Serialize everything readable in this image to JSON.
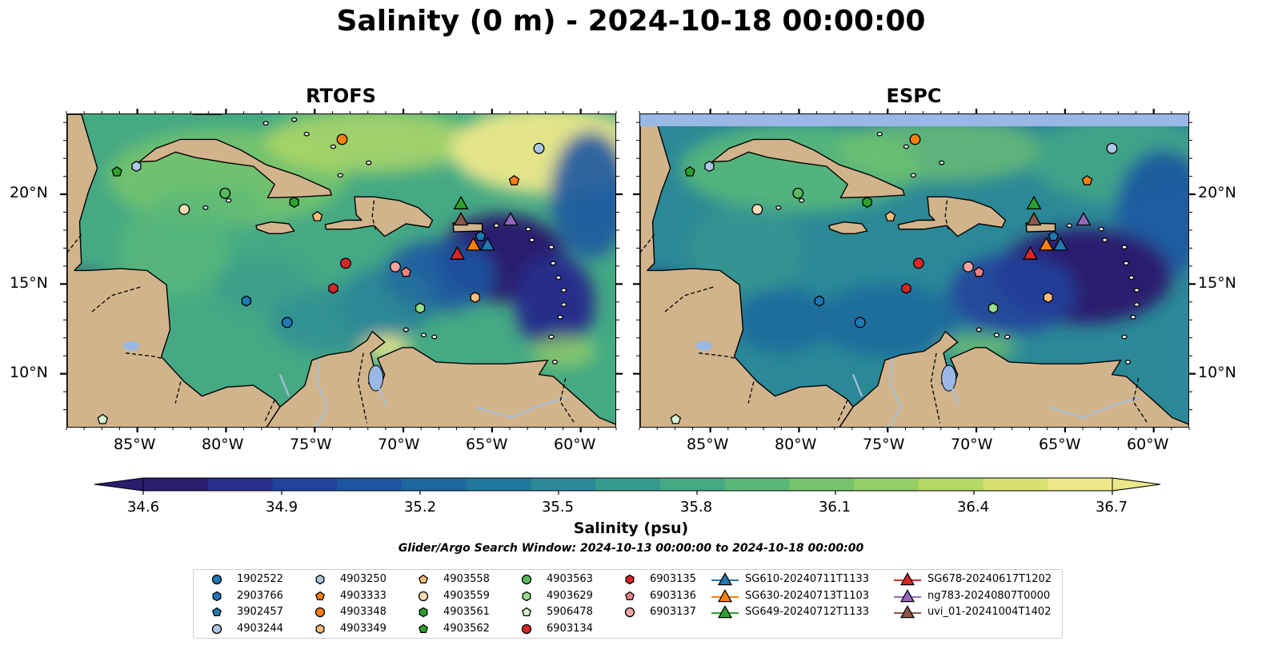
{
  "title": "Salinity (0 m) - 2024-10-18 00:00:00",
  "panels": [
    {
      "title": "RTOFS",
      "variant": "rtofs"
    },
    {
      "title": "ESPC",
      "variant": "espc"
    }
  ],
  "axes": {
    "lon_labels": [
      "85°W",
      "80°W",
      "75°W",
      "70°W",
      "65°W",
      "60°W"
    ],
    "lon_values": [
      -85,
      -80,
      -75,
      -70,
      -65,
      -60
    ],
    "lat_labels": [
      "20°N",
      "15°N",
      "10°N"
    ],
    "lat_values": [
      20,
      15,
      10
    ],
    "lon_range": [
      -89,
      -58
    ],
    "lat_range": [
      7,
      24.5
    ]
  },
  "colorbar": {
    "title": "Salinity (psu)",
    "tick_labels": [
      "34.6",
      "34.9",
      "35.2",
      "35.5",
      "35.8",
      "36.1",
      "36.4",
      "36.7"
    ],
    "range": [
      34.6,
      36.7
    ],
    "extend": "both",
    "colors": [
      "#2a1d6e",
      "#282f8a",
      "#22439c",
      "#1c56a1",
      "#1d679f",
      "#22789c",
      "#2b8997",
      "#36998e",
      "#45a984",
      "#58b879",
      "#75c46d",
      "#93cf66",
      "#b4d965",
      "#d6e16f",
      "#ece88a"
    ]
  },
  "search_window": "Glider/Argo Search Window: 2024-10-13 00:00:00 to 2024-10-18 00:00:00",
  "colors": {
    "land": "#d2b48c",
    "water_bodies": "#9ab8e6",
    "rivers": "#a8bfd8",
    "espc_no_data": "#9ab8e6"
  },
  "legend": [
    {
      "label": "1902522",
      "marker": "circle",
      "color": "#1f77b4"
    },
    {
      "label": "2903766",
      "marker": "hexagon",
      "color": "#1f77b4"
    },
    {
      "label": "3902457",
      "marker": "pentagon",
      "color": "#1f77b4"
    },
    {
      "label": "4903244",
      "marker": "circle",
      "color": "#aec7e8"
    },
    {
      "label": "4903250",
      "marker": "hexagon",
      "color": "#aec7e8"
    },
    {
      "label": "4903333",
      "marker": "pentagon",
      "color": "#ff7f0e"
    },
    {
      "label": "4903348",
      "marker": "circle",
      "color": "#ff7f0e"
    },
    {
      "label": "4903349",
      "marker": "hexagon",
      "color": "#ffbb78"
    },
    {
      "label": "4903558",
      "marker": "pentagon",
      "color": "#ffbb78"
    },
    {
      "label": "4903559",
      "marker": "circle",
      "color": "#ffdab9"
    },
    {
      "label": "4903561",
      "marker": "hexagon",
      "color": "#2ca02c"
    },
    {
      "label": "4903562",
      "marker": "pentagon",
      "color": "#2ca02c"
    },
    {
      "label": "4903563",
      "marker": "circle",
      "color": "#5cb85c"
    },
    {
      "label": "4903629",
      "marker": "hexagon",
      "color": "#98df8a"
    },
    {
      "label": "5906478",
      "marker": "pentagon",
      "color": "#d8f5d0"
    },
    {
      "label": "6903134",
      "marker": "circle",
      "color": "#d62728"
    },
    {
      "label": "6903135",
      "marker": "hexagon",
      "color": "#d62728"
    },
    {
      "label": "6903136",
      "marker": "pentagon",
      "color": "#f08080"
    },
    {
      "label": "6903137",
      "marker": "circle",
      "color": "#f4a3a3"
    },
    {
      "label": "SG610-20240711T1133",
      "marker": "triangle",
      "color": "#1f77b4"
    },
    {
      "label": "SG630-20240713T1103",
      "marker": "triangle",
      "color": "#ff7f0e"
    },
    {
      "label": "SG649-20240712T1133",
      "marker": "triangle",
      "color": "#2ca02c"
    },
    {
      "label": "SG678-20240617T1202",
      "marker": "triangle",
      "color": "#d62728"
    },
    {
      "label": "ng783-20240807T0000",
      "marker": "triangle",
      "color": "#9467bd"
    },
    {
      "label": "uvi_01-20241004T1402",
      "marker": "triangle",
      "color": "#8c564b"
    }
  ],
  "observations": [
    {
      "id": "1902522",
      "lon": -76.6,
      "lat": 12.9
    },
    {
      "id": "2903766",
      "lon": -78.9,
      "lat": 14.1
    },
    {
      "id": "3902457",
      "lon": -65.7,
      "lat": 17.7
    },
    {
      "id": "4903244",
      "lon": -62.4,
      "lat": 22.6
    },
    {
      "id": "4903250",
      "lon": -85.1,
      "lat": 21.6
    },
    {
      "id": "4903333",
      "lon": -63.8,
      "lat": 20.8
    },
    {
      "id": "4903348",
      "lon": -73.5,
      "lat": 23.1
    },
    {
      "id": "4903349",
      "lon": -66.0,
      "lat": 14.3
    },
    {
      "id": "4903558",
      "lon": -74.9,
      "lat": 18.8
    },
    {
      "id": "4903559",
      "lon": -82.4,
      "lat": 19.2
    },
    {
      "id": "4903561",
      "lon": -76.2,
      "lat": 19.6
    },
    {
      "id": "4903562",
      "lon": -86.2,
      "lat": 21.3
    },
    {
      "id": "4903563",
      "lon": -80.1,
      "lat": 20.1
    },
    {
      "id": "4903629",
      "lon": -69.1,
      "lat": 13.7
    },
    {
      "id": "5906478",
      "lon": -87.0,
      "lat": 7.5
    },
    {
      "id": "6903134",
      "lon": -73.3,
      "lat": 16.2
    },
    {
      "id": "6903135",
      "lon": -74.0,
      "lat": 14.8
    },
    {
      "id": "6903136",
      "lon": -69.9,
      "lat": 15.7
    },
    {
      "id": "6903137",
      "lon": -70.5,
      "lat": 16.0
    },
    {
      "id": "SG610-20240711T1133",
      "lon": -65.3,
      "lat": 17.2
    },
    {
      "id": "SG630-20240713T1103",
      "lon": -66.1,
      "lat": 17.2
    },
    {
      "id": "SG649-20240712T1133",
      "lon": -66.8,
      "lat": 19.5
    },
    {
      "id": "SG678-20240617T1202",
      "lon": -67.0,
      "lat": 16.7
    },
    {
      "id": "ng783-20240807T0000",
      "lon": -64.0,
      "lat": 18.6
    },
    {
      "id": "uvi_01-20241004T1402",
      "lon": -66.8,
      "lat": 18.6
    }
  ]
}
